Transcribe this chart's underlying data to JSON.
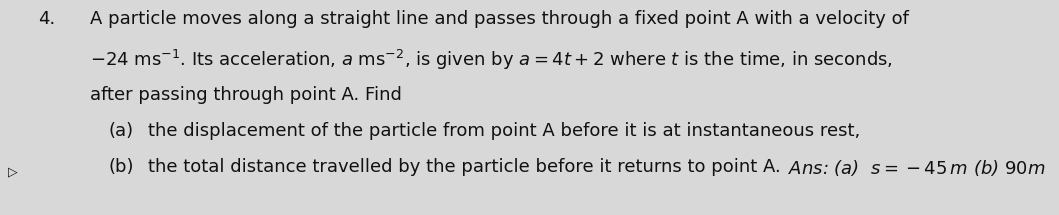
{
  "background_color": "#d8d8d8",
  "question_number": "4.",
  "line1": "A particle moves along a straight line and passes through a fixed point A with a velocity of",
  "line2": "$-$24 ms$^{-1}$. Its acceleration, $a$ ms$^{-2}$, is given by $a=4t+2$ where $t$ is the time, in seconds,",
  "line3": "after passing through point A. Find",
  "label_a": "(a)",
  "text_a": "the displacement of the particle from point A before it is at instantaneous rest,",
  "label_b": "(b)",
  "text_b": "the total distance travelled by the particle before it returns to point A.",
  "ans": "Ans: (a)  $s=-45\\,m$ (b) $90m$",
  "font_size": 13.0,
  "text_color": "#111111",
  "fig_width": 10.59,
  "fig_height": 2.15,
  "dpi": 100
}
